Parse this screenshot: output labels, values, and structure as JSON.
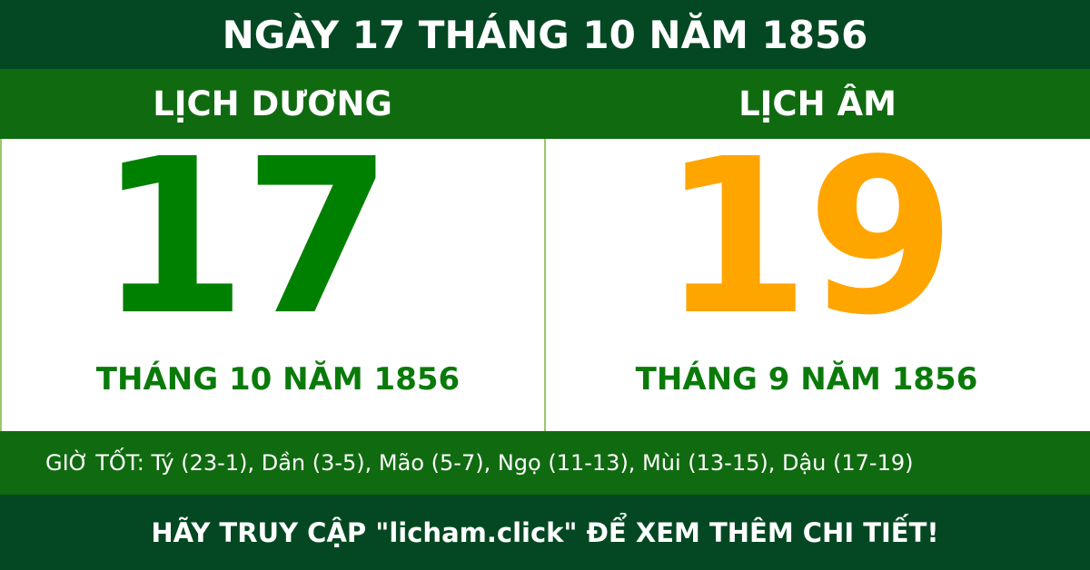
{
  "title": "NGÀY 17 THÁNG 10 NĂM 1856",
  "solar": {
    "heading": "LỊCH DƯƠNG",
    "day": "17",
    "month_year": "THÁNG 10 NĂM 1856"
  },
  "lunar": {
    "heading": "LỊCH ÂM",
    "day": "19",
    "month_year": "THÁNG 9 NĂM 1856"
  },
  "good_hours": "GIỜ TỐT: Tý (23-1), Dần (3-5), Mão (5-7), Ngọ (11-13), Mùi (13-15), Dậu (17-19)",
  "footer": "HÃY TRUY CẬP \"licham.click\" ĐỂ XEM THÊM CHI TIẾT!",
  "colors": {
    "dark_green": "#034822",
    "band_green": "#106b10",
    "solar_day": "#008000",
    "lunar_day": "#ffa500"
  }
}
